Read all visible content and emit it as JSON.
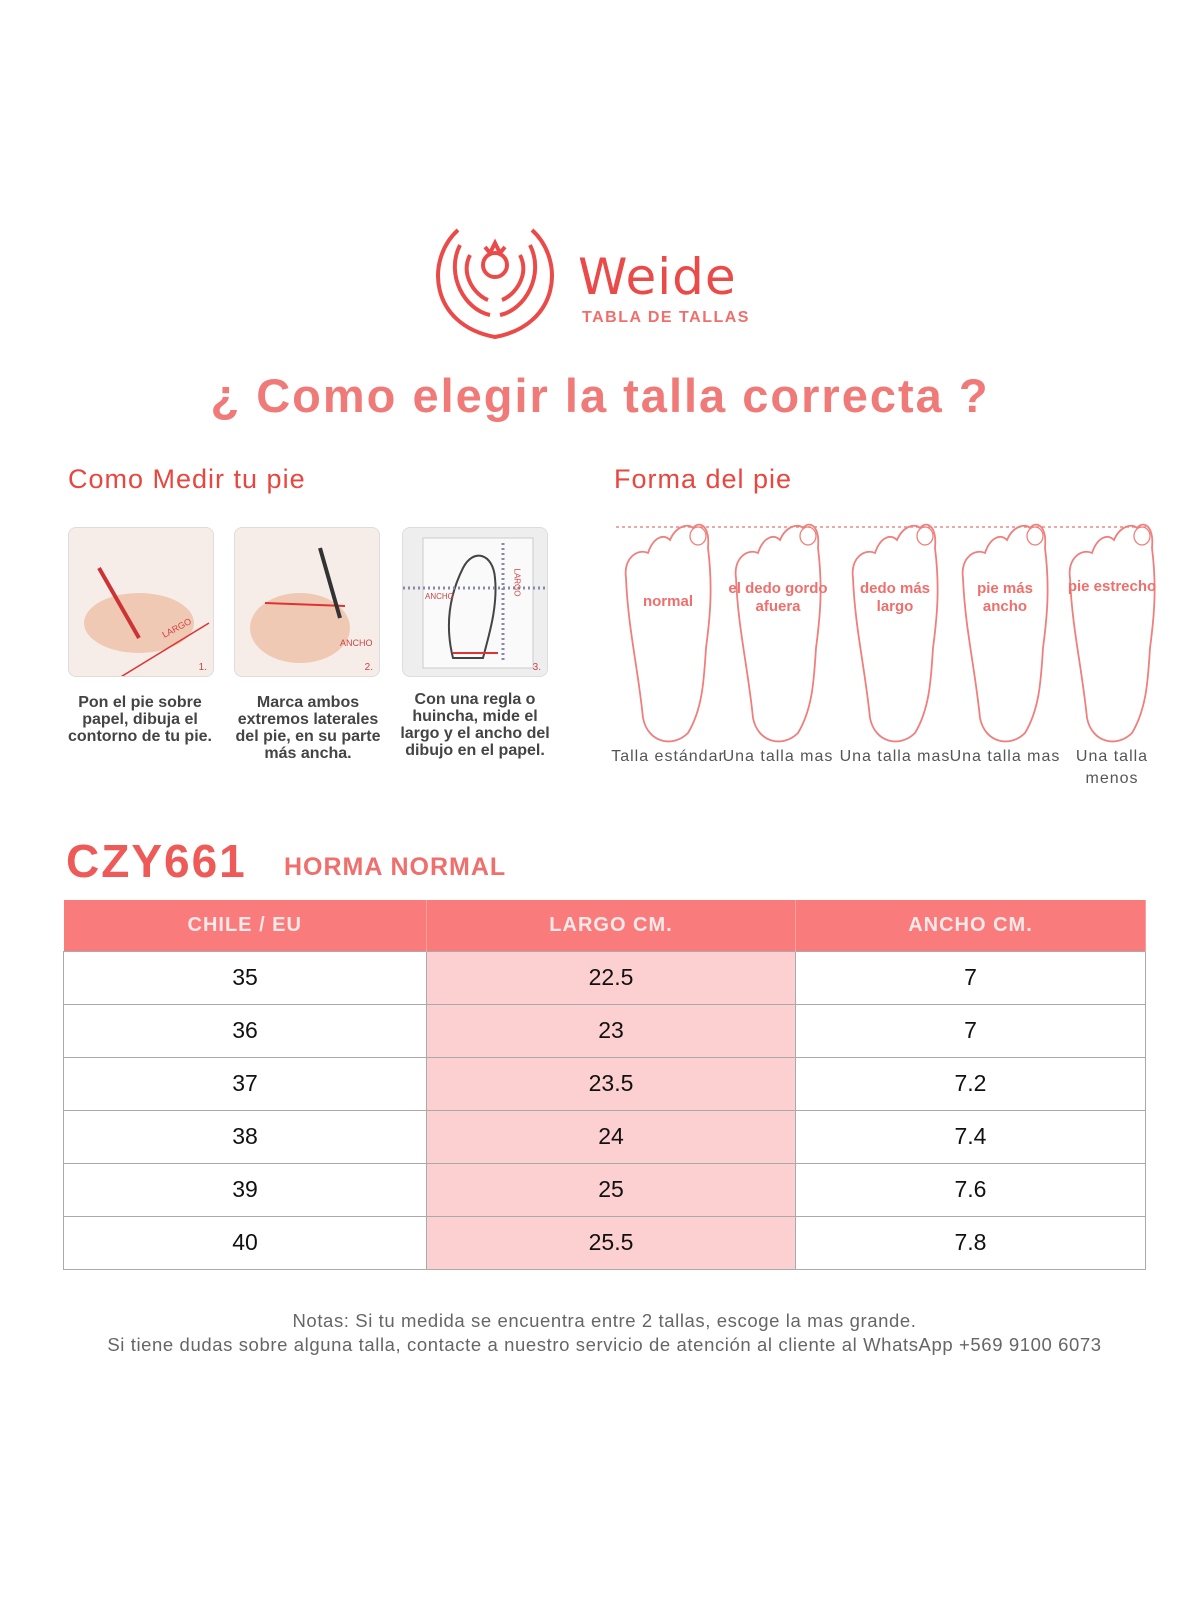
{
  "brand": {
    "name": "Weide",
    "subtitle": "TABLA DE TALLAS"
  },
  "title": "¿ Como elegir la talla correcta ?",
  "measure": {
    "heading": "Como Medir tu pie",
    "steps": [
      {
        "number": "1.",
        "tag": "LARGO",
        "caption": "Pon el pie sobre papel, dibuja el contorno de tu pie."
      },
      {
        "number": "2.",
        "tag": "ANCHO",
        "caption": "Marca ambos extremos laterales del pie, en su parte más ancha."
      },
      {
        "number": "3.",
        "tag": "LARGO",
        "tag2": "ANCHO",
        "caption": "Con una regla o huincha, mide el largo y el ancho del dibujo en el papel."
      }
    ]
  },
  "shape": {
    "heading": "Forma del pie",
    "feet": [
      {
        "label": "normal",
        "caption": "Talla estándar"
      },
      {
        "label": "el dedo gordo afuera",
        "caption": "Una talla mas"
      },
      {
        "label": "dedo más largo",
        "caption": "Una talla mas"
      },
      {
        "label": "pie más ancho",
        "caption": "Una talla mas"
      },
      {
        "label": "pie estrecho",
        "caption": "Una talla menos"
      }
    ]
  },
  "model": {
    "code": "CZY661",
    "fit": "HORMA NORMAL"
  },
  "table": {
    "headers": [
      "CHILE / EU",
      "LARGO CM.",
      "ANCHO CM."
    ],
    "rows": [
      [
        "35",
        "22.5",
        "7"
      ],
      [
        "36",
        "23",
        "7"
      ],
      [
        "37",
        "23.5",
        "7.2"
      ],
      [
        "38",
        "24",
        "7.4"
      ],
      [
        "39",
        "25",
        "7.6"
      ],
      [
        "40",
        "25.5",
        "7.8"
      ]
    ]
  },
  "notes": [
    "Notas: Si tu medida se encuentra entre 2 tallas, escoge la mas grande.",
    "Si tiene dudas sobre alguna talla, contacte a nuestro servicio de atención al cliente al WhatsApp +569 9100 6073"
  ],
  "colors": {
    "accent": "#ee5a57",
    "header": "#fa7b7b",
    "highlight": "#fccfd0"
  }
}
